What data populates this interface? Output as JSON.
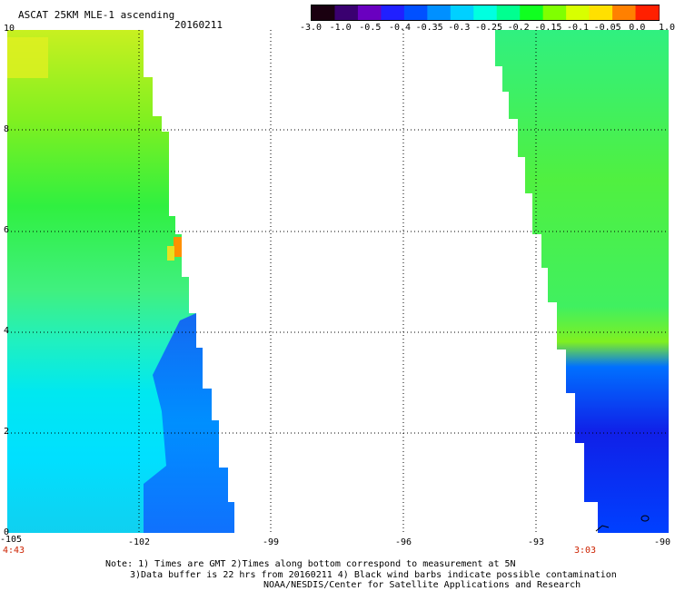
{
  "header": {
    "title": "ASCAT 25KM MLE-1 ascending",
    "date": "20160211"
  },
  "colorbar": {
    "labels": [
      "-3.0",
      "-1.0",
      "-0.5",
      "-0.4",
      "-0.35",
      "-0.3",
      "-0.25",
      "-0.2",
      "-0.15",
      "-0.1",
      "-0.05",
      "0.0",
      "1.0"
    ],
    "colors": [
      "#1a0010",
      "#3a0070",
      "#6a00c0",
      "#2020ff",
      "#0050ff",
      "#0090ff",
      "#00d0ff",
      "#00ffe0",
      "#00ff90",
      "#10ff20",
      "#80ff00",
      "#d8ff00",
      "#ffe000",
      "#ff8000",
      "#ff2000"
    ]
  },
  "map": {
    "lon_range": [
      -105,
      -90
    ],
    "lat_range": [
      0,
      10
    ],
    "x_ticks": [
      "-105",
      "-102",
      "-99",
      "-96",
      "-93",
      "-90"
    ],
    "y_ticks": [
      "0",
      "2",
      "4",
      "6",
      "8",
      "10"
    ],
    "pass_times": {
      "left": "4:43",
      "right": "3:03"
    }
  },
  "notes": [
    "Note: 1) Times are GMT 2)Times along bottom correspond to measurement at 5N",
    "3)Data buffer is 22 hrs from 20160211 4) Black wind barbs indicate possible contamination",
    "NOAA/NESDIS/Center for Satellite Applications and Research"
  ]
}
